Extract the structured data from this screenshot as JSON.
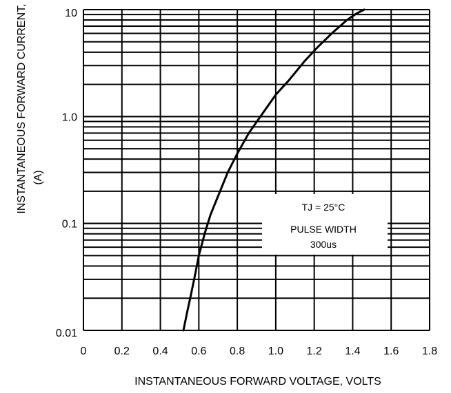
{
  "chart_data": {
    "type": "line",
    "title": "",
    "xlabel": "INSTANTANEOUS FORWARD VOLTAGE, VOLTS",
    "ylabel_lines": [
      "INSTANTANEOUS FORWARD CURRENT,",
      "(A)"
    ],
    "xlim": [
      0,
      1.8
    ],
    "ylim": [
      0.01,
      10
    ],
    "yscale": "log",
    "grid": true,
    "x_ticks": [
      0,
      0.2,
      0.4,
      0.6,
      0.8,
      1.0,
      1.2,
      1.4,
      1.6,
      1.8
    ],
    "x_tick_labels": [
      "0",
      "0.2",
      "0.4",
      "0.6",
      "0.8",
      "1.0",
      "1.2",
      "1.4",
      "1.6",
      "1.8"
    ],
    "y_ticks": [
      0.01,
      0.1,
      1.0,
      10
    ],
    "y_tick_labels": [
      "0.01",
      "0.1",
      "1.0",
      "10"
    ],
    "annotation_lines": [
      "TJ = 25°C",
      "PULSE WIDTH",
      "300us"
    ],
    "series": [
      {
        "x": [
          0.52,
          0.54,
          0.56,
          0.58,
          0.6,
          0.63,
          0.66,
          0.7,
          0.75,
          0.8,
          0.86,
          0.92,
          1.0,
          1.07,
          1.15,
          1.22,
          1.3,
          1.37,
          1.42,
          1.46
        ],
        "y": [
          0.01,
          0.015,
          0.022,
          0.033,
          0.05,
          0.08,
          0.12,
          0.18,
          0.3,
          0.45,
          0.7,
          1.0,
          1.6,
          2.2,
          3.3,
          4.5,
          6.2,
          8.0,
          9.2,
          10.0
        ]
      }
    ]
  }
}
